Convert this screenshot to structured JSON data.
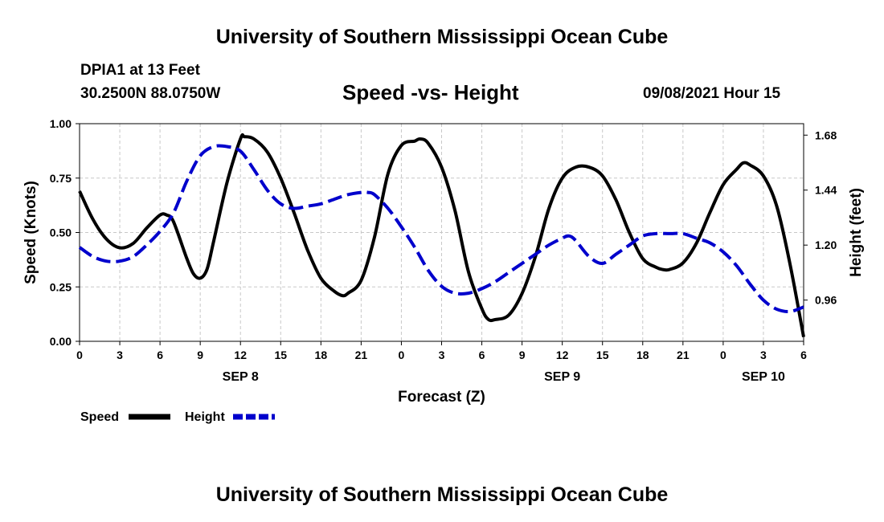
{
  "header": {
    "title": "University of Southern Mississippi Ocean Cube",
    "station": "DPIA1 at 13 Feet",
    "coords": "30.2500N  88.0750W",
    "chart_title": "Speed -vs- Height",
    "timestamp": "09/08/2021 Hour 15"
  },
  "footer": {
    "title": "University of Southern Mississippi Ocean Cube"
  },
  "chart_data": {
    "type": "line",
    "title": "Speed -vs- Height",
    "xlabel": "Forecast (Z)",
    "ylabel": "Speed (Knots)",
    "y2label": "Height (feet)",
    "xlim": [
      0,
      54
    ],
    "ylim": [
      0,
      1.0
    ],
    "y2lim": [
      0.78,
      1.73
    ],
    "x_ticks": [
      0,
      3,
      6,
      9,
      12,
      15,
      18,
      21,
      24,
      27,
      30,
      33,
      36,
      39,
      42,
      45,
      48,
      51,
      54
    ],
    "x_tick_labels": [
      "0",
      "3",
      "6",
      "9",
      "12",
      "15",
      "18",
      "21",
      "0",
      "3",
      "6",
      "9",
      "12",
      "15",
      "18",
      "21",
      "0",
      "3",
      "6"
    ],
    "y_ticks": [
      0,
      0.25,
      0.5,
      0.75,
      1.0
    ],
    "y_tick_labels": [
      "0.00",
      "0.25",
      "0.50",
      "0.75",
      "1.00"
    ],
    "y2_ticks": [
      0.96,
      1.2,
      1.44,
      1.68
    ],
    "y2_tick_labels": [
      "0.96",
      "1.20",
      "1.44",
      "1.68"
    ],
    "day_labels": [
      {
        "x": 12,
        "label": "SEP 8"
      },
      {
        "x": 36,
        "label": "SEP 9"
      },
      {
        "x": 51,
        "label": "SEP 10"
      }
    ],
    "grid": true,
    "legend_position": "bottom-left",
    "series": [
      {
        "name": "Speed",
        "axis": "left",
        "color": "#000000",
        "style": "solid",
        "x": [
          0,
          1,
          2,
          3,
          4,
          5,
          6,
          6.5,
          7,
          8,
          8.5,
          9,
          9.5,
          10,
          11,
          12,
          12.3,
          13,
          14,
          15,
          16,
          17,
          18,
          19,
          19.6,
          20,
          21,
          22,
          23,
          24,
          25,
          25.4,
          26,
          27,
          28,
          29,
          30,
          30.5,
          31,
          32,
          33,
          34,
          35,
          36,
          37,
          38,
          39,
          40,
          41,
          42,
          43,
          43.5,
          44,
          45,
          46,
          47,
          48,
          49,
          49.5,
          50,
          51,
          52,
          53,
          54
        ],
        "y": [
          0.69,
          0.56,
          0.47,
          0.43,
          0.45,
          0.52,
          0.58,
          0.58,
          0.55,
          0.38,
          0.31,
          0.29,
          0.33,
          0.46,
          0.73,
          0.93,
          0.94,
          0.93,
          0.87,
          0.75,
          0.59,
          0.42,
          0.29,
          0.23,
          0.21,
          0.22,
          0.28,
          0.48,
          0.77,
          0.9,
          0.92,
          0.93,
          0.91,
          0.8,
          0.6,
          0.32,
          0.15,
          0.1,
          0.1,
          0.12,
          0.22,
          0.39,
          0.61,
          0.75,
          0.8,
          0.8,
          0.76,
          0.65,
          0.5,
          0.38,
          0.34,
          0.33,
          0.33,
          0.36,
          0.45,
          0.59,
          0.72,
          0.79,
          0.82,
          0.81,
          0.76,
          0.62,
          0.35,
          0.02
        ]
      },
      {
        "name": "Height",
        "axis": "right",
        "color": "#0000cc",
        "style": "dashed",
        "x": [
          0,
          1,
          2,
          3,
          4,
          5,
          6,
          7,
          8,
          9,
          10,
          11,
          12,
          13,
          14,
          15,
          16,
          17,
          18,
          19,
          20,
          21,
          21.5,
          22,
          23,
          24,
          25,
          26,
          27,
          28,
          29,
          30,
          31,
          32,
          33,
          34,
          35,
          36,
          36.5,
          37,
          38,
          39,
          40,
          41,
          42,
          43,
          44,
          45,
          46,
          47,
          48,
          49,
          50,
          51,
          52,
          53,
          54
        ],
        "y": [
          1.19,
          1.15,
          1.13,
          1.13,
          1.15,
          1.2,
          1.26,
          1.34,
          1.48,
          1.59,
          1.63,
          1.63,
          1.61,
          1.53,
          1.44,
          1.38,
          1.36,
          1.37,
          1.38,
          1.4,
          1.42,
          1.43,
          1.43,
          1.42,
          1.36,
          1.28,
          1.19,
          1.09,
          1.02,
          0.99,
          0.99,
          1.01,
          1.04,
          1.08,
          1.12,
          1.16,
          1.2,
          1.23,
          1.24,
          1.22,
          1.15,
          1.12,
          1.16,
          1.2,
          1.24,
          1.25,
          1.25,
          1.25,
          1.23,
          1.21,
          1.17,
          1.11,
          1.03,
          0.96,
          0.92,
          0.91,
          0.93
        ]
      }
    ]
  }
}
